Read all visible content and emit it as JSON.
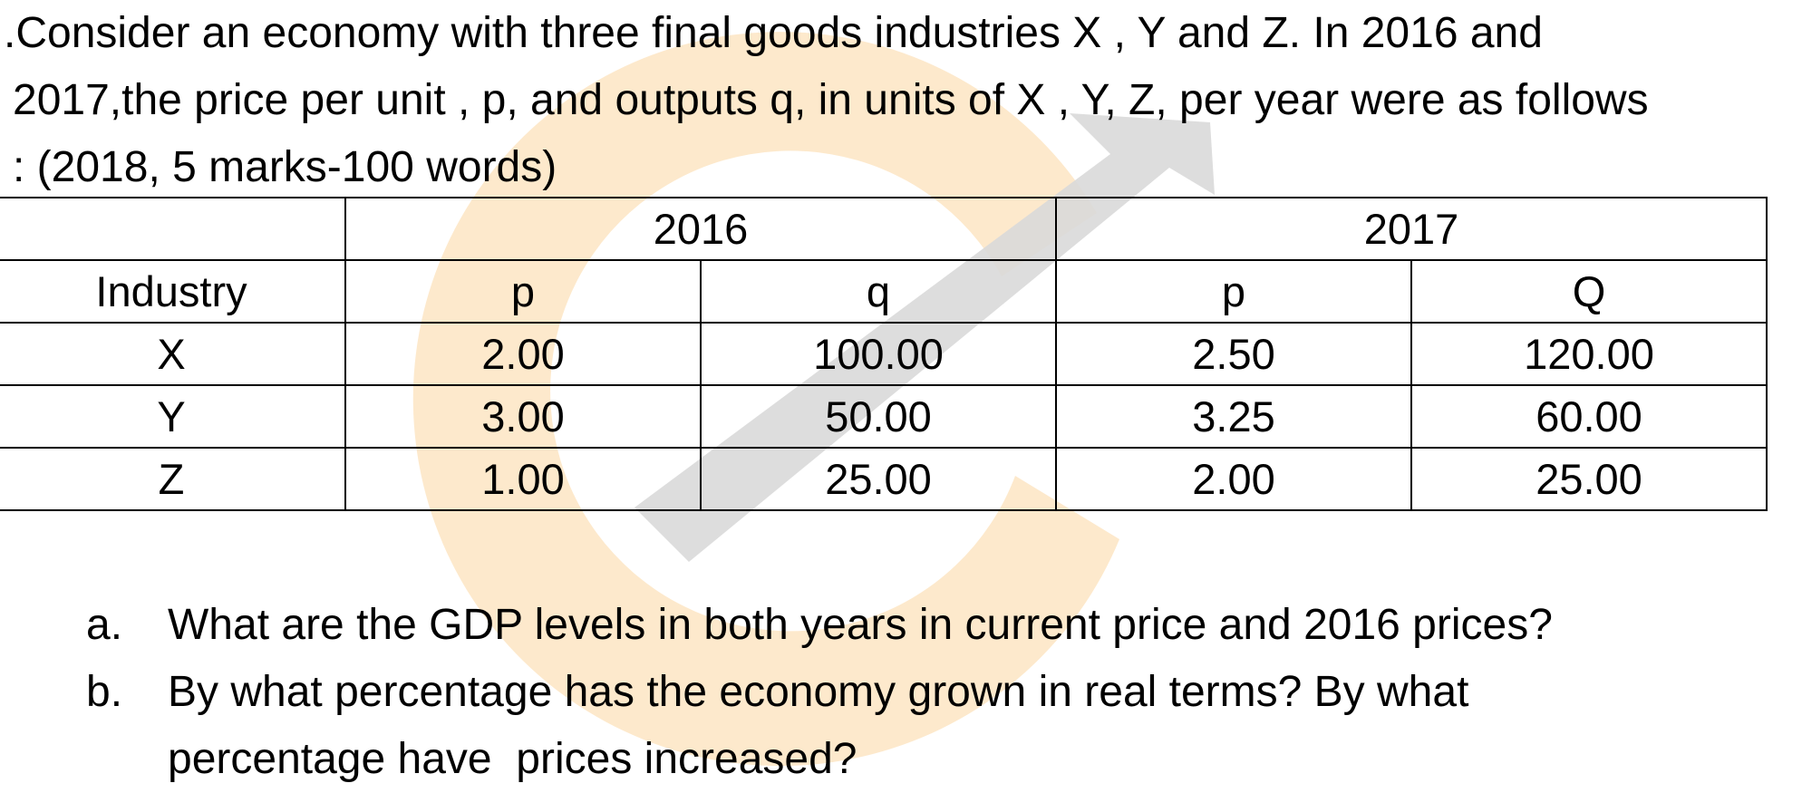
{
  "question": {
    "lines": [
      ".Consider an economy with three final goods industries X , Y and Z. In 2016 and",
      "2017,the price per unit , p, and outputs q, in units of X , Y, Z, per year were as follows",
      ": (2018, 5 marks-100 words)"
    ]
  },
  "table": {
    "year_headers": [
      "2016",
      "2017"
    ],
    "column_headers": [
      "Industry",
      "p",
      "q",
      "p",
      "Q"
    ],
    "rows": [
      [
        "X",
        "2.00",
        "100.00",
        "2.50",
        "120.00"
      ],
      [
        "Y",
        "3.00",
        "50.00",
        "3.25",
        "60.00"
      ],
      [
        "Z",
        "1.00",
        "25.00",
        "2.00",
        "25.00"
      ]
    ]
  },
  "sub_questions": [
    {
      "marker": "a.",
      "text": "What are the GDP levels in both years in current price and 2016 prices?"
    },
    {
      "marker": "b.",
      "text": "By what percentage has the economy grown in real terms? By what",
      "continuation": "percentage have  prices increased?"
    }
  ],
  "watermark": {
    "ring_color": "#fde5c3",
    "arrow_color": "#d9d9d9"
  }
}
